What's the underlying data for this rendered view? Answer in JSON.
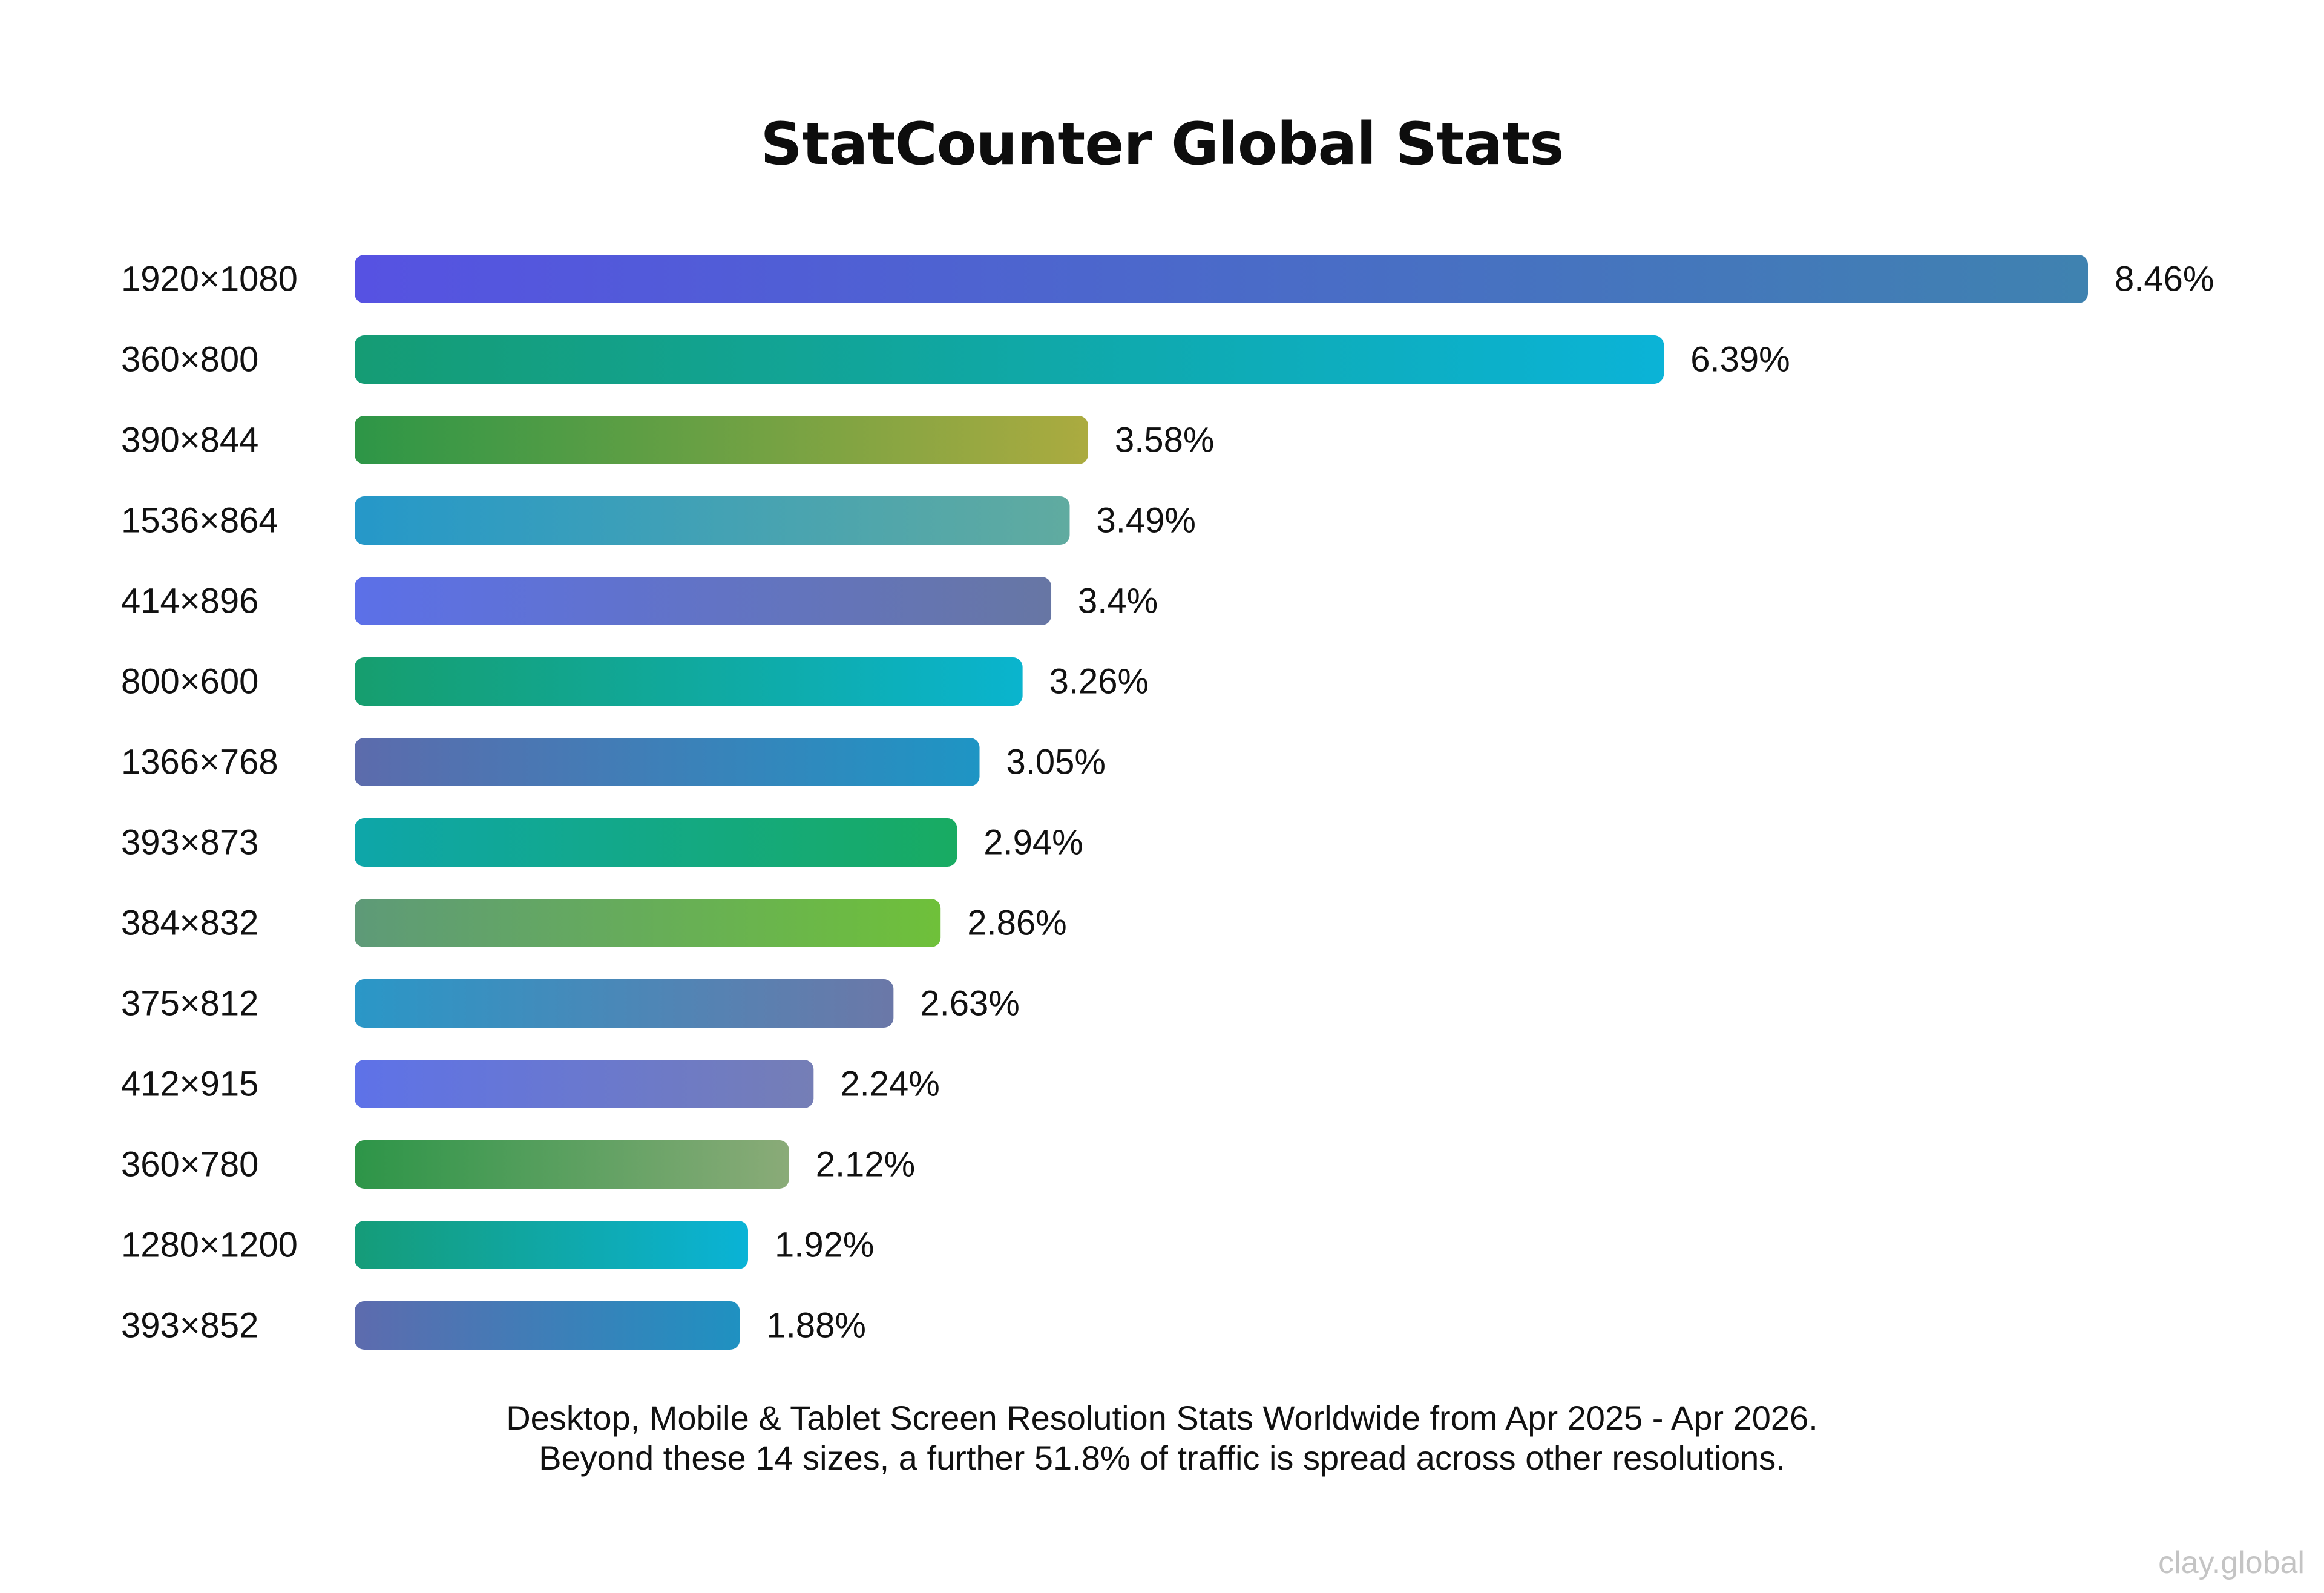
{
  "chart_data": {
    "type": "bar",
    "orientation": "horizontal",
    "title": "StatCounter Global Stats",
    "categories": [
      "1920×1080",
      "360×800",
      "390×844",
      "1536×864",
      "414×896",
      "800×600",
      "1366×768",
      "393×873",
      "384×832",
      "375×812",
      "412×915",
      "360×780",
      "1280×1200",
      "393×852"
    ],
    "values": [
      8.46,
      6.39,
      3.58,
      3.49,
      3.4,
      3.26,
      3.05,
      2.94,
      2.86,
      2.63,
      2.24,
      2.12,
      1.92,
      1.88
    ],
    "value_labels": [
      "8.46%",
      "6.39%",
      "3.58%",
      "3.49%",
      "3.4%",
      "3.26%",
      "3.05%",
      "2.94%",
      "2.86%",
      "2.63%",
      "2.24%",
      "2.12%",
      "1.92%",
      "1.88%"
    ],
    "bar_gradients": [
      [
        "#5652e2",
        "#3f82b0"
      ],
      [
        "#159c74",
        "#0bb3d7"
      ],
      [
        "#2d9647",
        "#abab40"
      ],
      [
        "#2598c9",
        "#60aba0"
      ],
      [
        "#5c70e8",
        "#6776a4"
      ],
      [
        "#169e6e",
        "#0ab4ce"
      ],
      [
        "#5c6bac",
        "#1e95c4"
      ],
      [
        "#0ea6a9",
        "#18ab62"
      ],
      [
        "#5e9a78",
        "#6fc03a"
      ],
      [
        "#2a97c7",
        "#6b78a8"
      ],
      [
        "#5e72e8",
        "#757eb6"
      ],
      [
        "#2d9548",
        "#8aab78"
      ],
      [
        "#159c78",
        "#0ab3d6"
      ],
      [
        "#5d6bae",
        "#1f91c1"
      ]
    ],
    "xlim": [
      0,
      8.46
    ],
    "grid": false,
    "legend": "none"
  },
  "footnote": {
    "line1": "Desktop, Mobile & Tablet Screen Resolution Stats Worldwide from Apr 2025 - Apr 2026.",
    "line2": "Beyond these 14 sizes, a further 51.8% of traffic is spread across other resolutions."
  },
  "watermark": "clay.global"
}
